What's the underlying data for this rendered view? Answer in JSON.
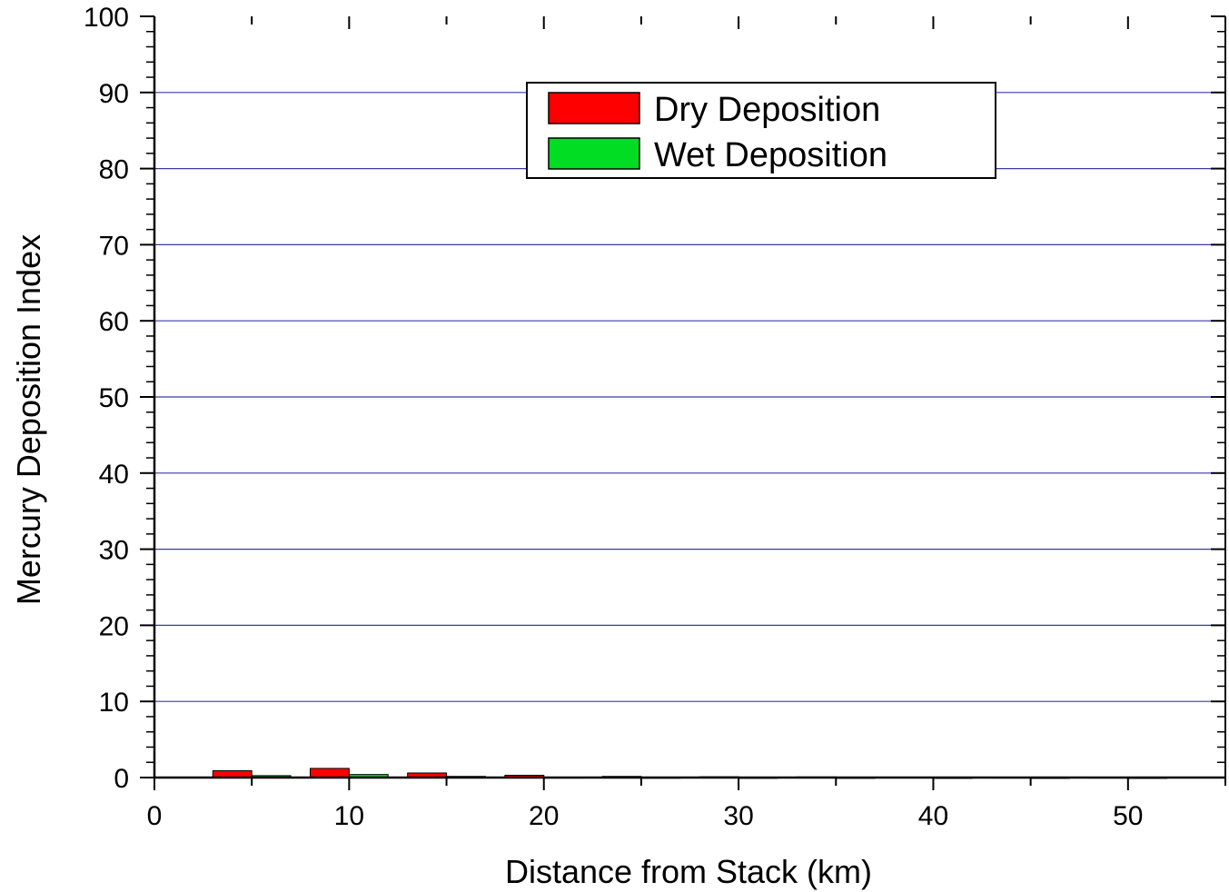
{
  "chart_data": {
    "type": "bar",
    "title": "",
    "xlabel": "Distance from Stack (km)",
    "ylabel": "Mercury Deposition Index",
    "xlim": [
      0,
      55
    ],
    "ylim": [
      0,
      100
    ],
    "xticks": [
      "0",
      "10",
      "20",
      "30",
      "40",
      "50"
    ],
    "yticks": [
      "0",
      "10",
      "20",
      "30",
      "40",
      "50",
      "60",
      "70",
      "80",
      "90",
      "100"
    ],
    "x_tick_values": [
      0,
      10,
      20,
      30,
      40,
      50
    ],
    "y_tick_values": [
      0,
      10,
      20,
      30,
      40,
      50,
      60,
      70,
      80,
      90,
      100
    ],
    "grid": "horizontal",
    "legend_position": "top-center",
    "bar_width": 2,
    "series": [
      {
        "name": "Dry Deposition",
        "color": "#ff0000",
        "x": [
          4,
          9,
          14,
          19,
          24,
          29,
          34,
          39,
          44,
          49
        ],
        "values": [
          0.9,
          1.2,
          0.6,
          0.3,
          0.15,
          0.1,
          0.08,
          0.06,
          0.05,
          0.05
        ]
      },
      {
        "name": "Wet Deposition",
        "color": "#00dd22",
        "x": [
          6,
          11,
          16,
          21,
          26,
          31,
          36,
          41,
          46,
          51
        ],
        "values": [
          0.25,
          0.4,
          0.15,
          0.05,
          0.03,
          0.02,
          0.02,
          0.01,
          0.01,
          0.01
        ]
      }
    ],
    "colors": {
      "grid": "#3a3aa8",
      "axis": "#000000"
    }
  }
}
